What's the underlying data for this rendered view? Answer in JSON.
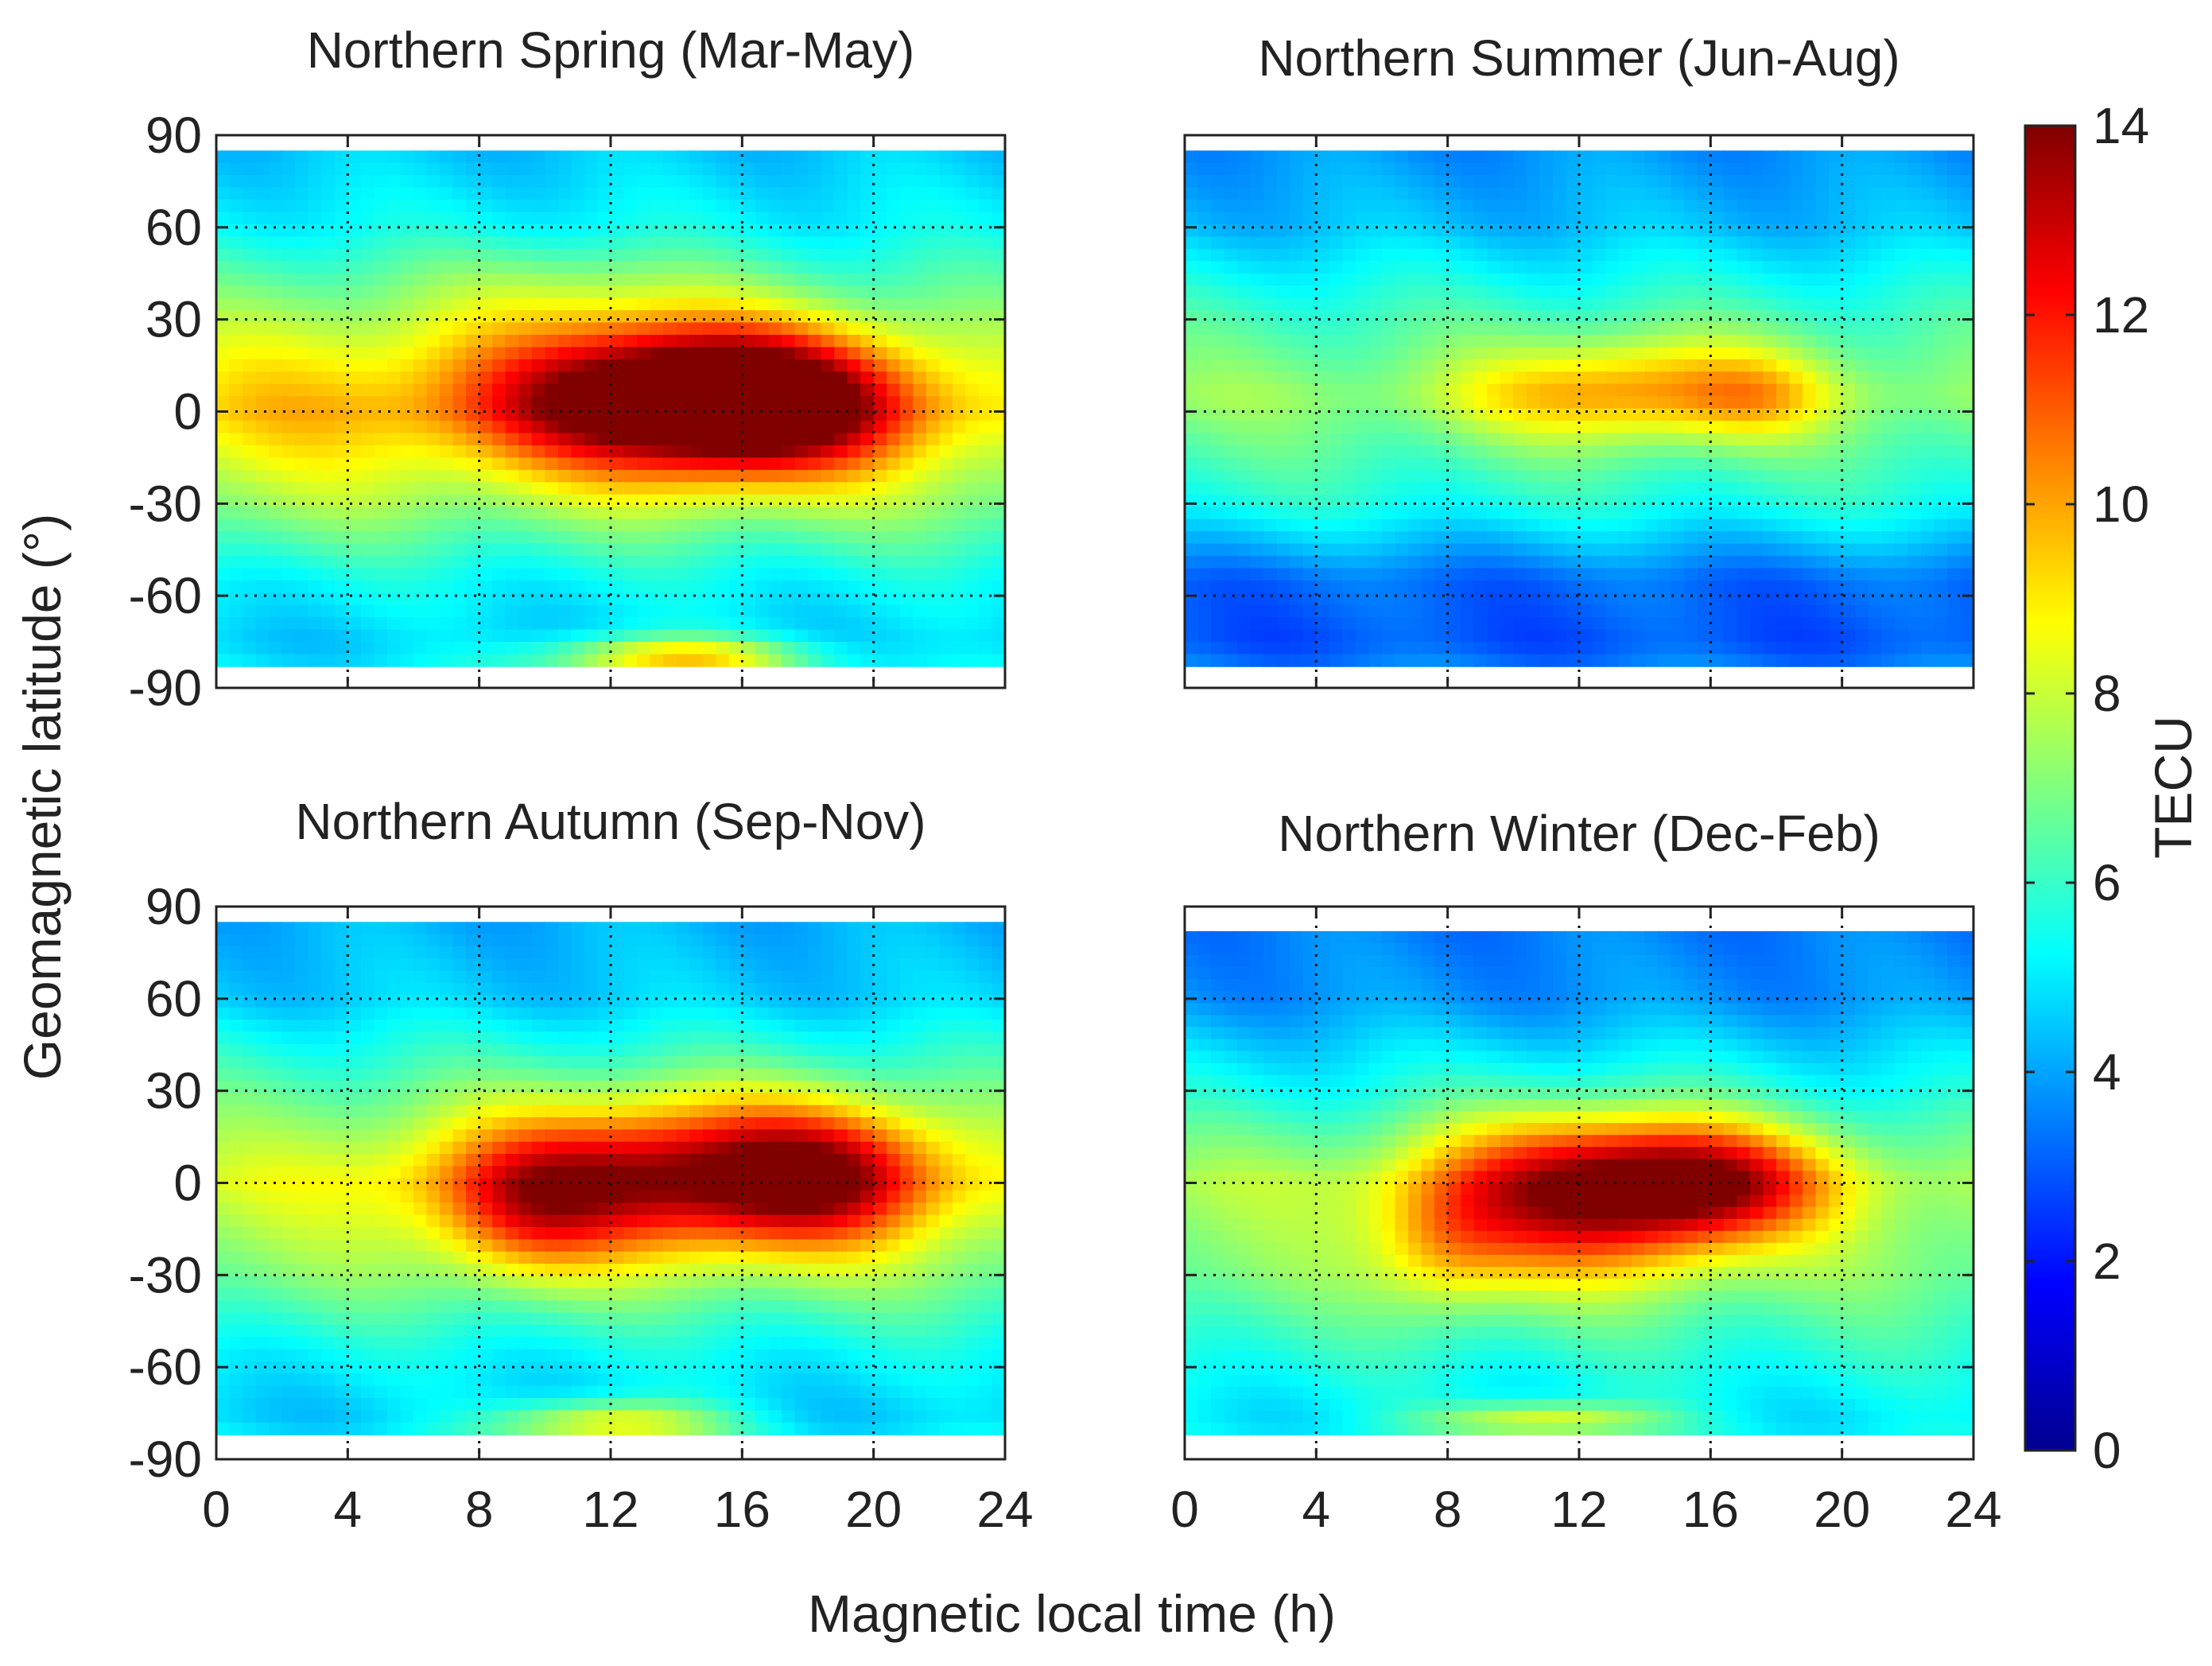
{
  "chart_data": {
    "type": "heatmap",
    "shared": {
      "xlabel": "Magnetic local time (h)",
      "ylabel": "Geomagnetic latitude (°)",
      "xlim": [
        0,
        24
      ],
      "ylim": [
        -90,
        90
      ],
      "xticks": [
        "0",
        "4",
        "8",
        "12",
        "16",
        "20",
        "24"
      ],
      "yticks": [
        "90",
        "60",
        "30",
        "0",
        "-30",
        "-60",
        "-90"
      ],
      "grid": "dotted",
      "colorbar": {
        "label": "TECU",
        "min": 0,
        "max": 14,
        "ticks": [
          "14",
          "12",
          "10",
          "8",
          "6",
          "4",
          "2",
          "0"
        ],
        "colormap": "jet",
        "colors": [
          "#00008f",
          "#0000ff",
          "#00ffff",
          "#ffff00",
          "#ff0000",
          "#800000"
        ]
      }
    },
    "panels": [
      {
        "title": "Northern Spring (Mar-May)",
        "show_ylabels": true,
        "show_xlabels": false,
        "lat_extent": [
          -83,
          85
        ],
        "background_tec": [
          {
            "lat": 85,
            "tec": 4.5
          },
          {
            "lat": 60,
            "tec": 5.2
          },
          {
            "lat": 30,
            "tec": 7.0
          },
          {
            "lat": 0,
            "tec": 8.6
          },
          {
            "lat": -30,
            "tec": 7.2
          },
          {
            "lat": -55,
            "tec": 5.3
          },
          {
            "lat": -75,
            "tec": 4.6
          },
          {
            "lat": -83,
            "tec": 5.0
          }
        ],
        "peaks": [
          {
            "mlt": 13.5,
            "lat": 5,
            "amp": 7.5,
            "w_mlt": 4.0,
            "w_lat": 17
          },
          {
            "mlt": 17.0,
            "lat": 2,
            "amp": 5.0,
            "w_mlt": 2.8,
            "w_lat": 15
          },
          {
            "mlt": 2.5,
            "lat": 8,
            "amp": 1.0,
            "w_mlt": 3,
            "w_lat": 25
          },
          {
            "mlt": 14.0,
            "lat": -80,
            "amp": 4.5,
            "w_mlt": 2.8,
            "w_lat": 5
          },
          {
            "mlt": 10.5,
            "lat": 40,
            "amp": 1.0,
            "w_mlt": 3,
            "w_lat": 12
          }
        ]
      },
      {
        "title": "Northern Summer (Jun-Aug)",
        "show_ylabels": false,
        "show_xlabels": false,
        "lat_extent": [
          -83,
          85
        ],
        "background_tec": [
          {
            "lat": 85,
            "tec": 3.8
          },
          {
            "lat": 60,
            "tec": 4.4
          },
          {
            "lat": 30,
            "tec": 6.2
          },
          {
            "lat": 5,
            "tec": 7.3
          },
          {
            "lat": -30,
            "tec": 5.6
          },
          {
            "lat": -55,
            "tec": 3.2
          },
          {
            "lat": -75,
            "tec": 2.9
          },
          {
            "lat": -83,
            "tec": 3.5
          }
        ],
        "peaks": [
          {
            "mlt": 14.0,
            "lat": 7,
            "amp": 3.0,
            "w_mlt": 3.0,
            "w_lat": 12
          },
          {
            "mlt": 17.5,
            "lat": 5,
            "amp": 1.5,
            "w_mlt": 1.5,
            "w_lat": 10
          },
          {
            "mlt": 10.0,
            "lat": 5,
            "amp": 0.6,
            "w_mlt": 2,
            "w_lat": 10
          }
        ]
      },
      {
        "title": "Northern Autumn (Sep-Nov)",
        "show_ylabels": true,
        "show_xlabels": true,
        "lat_extent": [
          -82,
          85
        ],
        "background_tec": [
          {
            "lat": 85,
            "tec": 4.2
          },
          {
            "lat": 60,
            "tec": 4.6
          },
          {
            "lat": 30,
            "tec": 6.5
          },
          {
            "lat": 0,
            "tec": 8.2
          },
          {
            "lat": -30,
            "tec": 7.0
          },
          {
            "lat": -55,
            "tec": 5.3
          },
          {
            "lat": -75,
            "tec": 4.6
          },
          {
            "lat": -82,
            "tec": 5.0
          }
        ],
        "peaks": [
          {
            "mlt": 14.0,
            "lat": 2,
            "amp": 6.0,
            "w_mlt": 4.5,
            "w_lat": 17
          },
          {
            "mlt": 18.5,
            "lat": 3,
            "amp": 3.5,
            "w_mlt": 2.2,
            "w_lat": 15
          },
          {
            "mlt": 9.5,
            "lat": -10,
            "amp": 2.5,
            "w_mlt": 1.8,
            "w_lat": 15
          },
          {
            "mlt": 12.0,
            "lat": -78,
            "amp": 4.0,
            "w_mlt": 2.5,
            "w_lat": 5
          }
        ]
      },
      {
        "title": "Northern Winter (Dec-Feb)",
        "show_ylabels": false,
        "show_xlabels": true,
        "lat_extent": [
          -82,
          82
        ],
        "background_tec": [
          {
            "lat": 82,
            "tec": 3.5
          },
          {
            "lat": 60,
            "tec": 3.8
          },
          {
            "lat": 30,
            "tec": 5.5
          },
          {
            "lat": 0,
            "tec": 7.6
          },
          {
            "lat": -30,
            "tec": 7.0
          },
          {
            "lat": -55,
            "tec": 5.8
          },
          {
            "lat": -75,
            "tec": 5.0
          },
          {
            "lat": -82,
            "tec": 5.2
          }
        ],
        "peaks": [
          {
            "mlt": 12.0,
            "lat": -3,
            "amp": 6.0,
            "w_mlt": 3.2,
            "w_lat": 18
          },
          {
            "mlt": 16.0,
            "lat": 0,
            "amp": 5.0,
            "w_mlt": 2.5,
            "w_lat": 13
          },
          {
            "mlt": 8.0,
            "lat": -20,
            "amp": 2.0,
            "w_mlt": 1.5,
            "w_lat": 15
          },
          {
            "mlt": 11.0,
            "lat": -77,
            "amp": 3.5,
            "w_mlt": 2.5,
            "w_lat": 4
          }
        ]
      }
    ]
  }
}
